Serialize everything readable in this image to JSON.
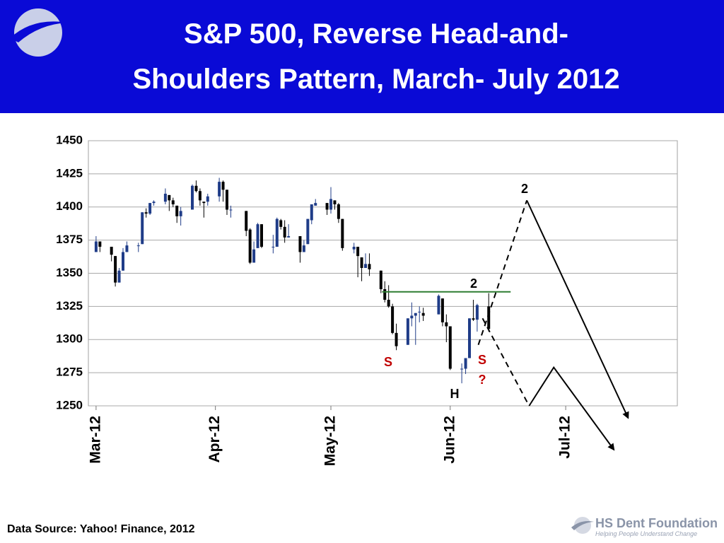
{
  "header": {
    "title_lines": [
      "S&P 500, Reverse Head-and-",
      "Shoulders Pattern, March- July 2012"
    ]
  },
  "chart_data": {
    "type": "candlestick",
    "xlim": [
      -2,
      151
    ],
    "xticks": [
      {
        "value": 0,
        "label": "Mar-12"
      },
      {
        "value": 31,
        "label": "Apr-12"
      },
      {
        "value": 61,
        "label": "May-12"
      },
      {
        "value": 92,
        "label": "Jun-12"
      },
      {
        "value": 122,
        "label": "Jul-12"
      }
    ],
    "ylim": [
      1250,
      1450
    ],
    "yticks": [
      1250,
      1275,
      1300,
      1325,
      1350,
      1375,
      1400,
      1425,
      1450
    ],
    "grid": true,
    "up_color": "#1f3c88",
    "down_color": "#000000",
    "x": [
      0,
      1,
      4,
      5,
      6,
      7,
      8,
      11,
      12,
      13,
      14,
      15,
      18,
      19,
      20,
      21,
      22,
      25,
      26,
      27,
      28,
      29,
      32,
      33,
      34,
      35,
      39,
      40,
      41,
      42,
      43,
      46,
      47,
      48,
      49,
      50,
      53,
      54,
      55,
      56,
      57,
      60,
      61,
      62,
      63,
      64,
      67,
      68,
      69,
      70,
      71,
      74,
      75,
      76,
      77,
      78,
      81,
      82,
      83,
      84,
      85,
      89,
      90,
      91,
      92,
      95,
      96,
      97,
      98,
      99,
      102
    ],
    "open": [
      1366,
      1374,
      1370,
      1363,
      1343,
      1352,
      1366,
      1371,
      1372,
      1396,
      1395,
      1403,
      1404,
      1409,
      1405,
      1401,
      1393,
      1398,
      1416,
      1412,
      1404,
      1404,
      1408,
      1419,
      1413,
      1398,
      1397,
      1383,
      1358,
      1369,
      1387,
      1370,
      1370,
      1390,
      1385,
      1377,
      1378,
      1366,
      1372,
      1390,
      1401,
      1403,
      1398,
      1405,
      1402,
      1391,
      1368,
      1370,
      1362,
      1354,
      1357,
      1352,
      1338,
      1330,
      1325,
      1305,
      1296,
      1316,
      1318,
      1321,
      1320,
      1319,
      1331,
      1313,
      1310,
      1278,
      1278,
      1286,
      1316,
      1315,
      1325
    ],
    "high": [
      1378,
      1374,
      1370,
      1363,
      1354,
      1369,
      1374,
      1373,
      1396,
      1399,
      1403,
      1405,
      1414,
      1409,
      1407,
      1401,
      1400,
      1417,
      1420,
      1414,
      1404,
      1410,
      1422,
      1420,
      1413,
      1401,
      1397,
      1384,
      1374,
      1388,
      1387,
      1379,
      1392,
      1391,
      1390,
      1387,
      1378,
      1375,
      1391,
      1402,
      1406,
      1403,
      1415,
      1405,
      1403,
      1391,
      1373,
      1370,
      1362,
      1365,
      1365,
      1352,
      1344,
      1341,
      1327,
      1312,
      1316,
      1328,
      1320,
      1325,
      1324,
      1334,
      1331,
      1319,
      1310,
      1282,
      1286,
      1316,
      1330,
      1327,
      1335
    ],
    "low": [
      1366,
      1366,
      1359,
      1340,
      1343,
      1352,
      1366,
      1366,
      1372,
      1392,
      1394,
      1401,
      1402,
      1397,
      1400,
      1388,
      1386,
      1398,
      1411,
      1401,
      1392,
      1401,
      1404,
      1404,
      1394,
      1392,
      1378,
      1357,
      1358,
      1369,
      1369,
      1365,
      1370,
      1383,
      1373,
      1377,
      1358,
      1366,
      1372,
      1387,
      1401,
      1394,
      1395,
      1398,
      1388,
      1367,
      1365,
      1347,
      1344,
      1354,
      1348,
      1335,
      1328,
      1324,
      1304,
      1292,
      1296,
      1310,
      1296,
      1313,
      1314,
      1319,
      1310,
      1298,
      1277,
      1267,
      1274,
      1286,
      1314,
      1306,
      1306
    ],
    "close": [
      1374,
      1370,
      1364,
      1343,
      1352,
      1366,
      1371,
      1371,
      1396,
      1395,
      1403,
      1404,
      1410,
      1405,
      1402,
      1393,
      1397,
      1416,
      1412,
      1405,
      1403,
      1408,
      1419,
      1413,
      1398,
      1398,
      1382,
      1358,
      1368,
      1387,
      1370,
      1370,
      1391,
      1385,
      1377,
      1378,
      1366,
      1371,
      1391,
      1402,
      1403,
      1398,
      1406,
      1402,
      1391,
      1369,
      1370,
      1363,
      1354,
      1357,
      1353,
      1338,
      1330,
      1325,
      1305,
      1295,
      1316,
      1318,
      1320,
      1321,
      1318,
      1333,
      1313,
      1310,
      1278,
      1278,
      1286,
      1316,
      1315,
      1326,
      1308
    ],
    "neckline": {
      "color": "#2e7d32",
      "x": [
        74.3,
        107.7
      ],
      "y": [
        1336,
        1336
      ]
    },
    "projections": [
      {
        "style": "dashed",
        "x": [
          99.3,
          111.9
        ],
        "y": [
          1296,
          1405
        ]
      },
      {
        "style": "dashed",
        "x": [
          100.4,
          112.5
        ],
        "y": [
          1316,
          1250
        ]
      },
      {
        "style": "arrow",
        "x": [
          112.5,
          118.9,
          134.5
        ],
        "y": [
          1250,
          1279,
          1217
        ]
      },
      {
        "style": "arrow",
        "x": [
          111.9,
          138.2
        ],
        "y": [
          1405,
          1241
        ]
      }
    ],
    "labels": [
      {
        "text": "2",
        "color": "#000000"
      },
      {
        "text": "2",
        "color": "#000000"
      },
      {
        "text": "S",
        "color": "#c00000"
      },
      {
        "text": "S",
        "color": "#c00000"
      },
      {
        "text": "?",
        "color": "#c00000"
      },
      {
        "text": "H",
        "color": "#000000"
      }
    ]
  },
  "footer": {
    "source": "Data Source: Yahoo! Finance, 2012",
    "logo_name": "HS Dent Foundation",
    "logo_tagline": "Helping People Understand Change"
  }
}
